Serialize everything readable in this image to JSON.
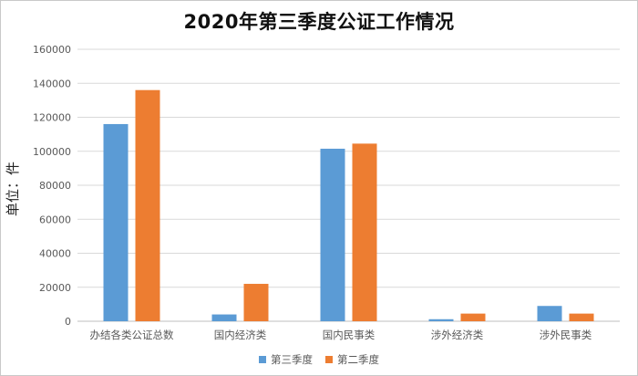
{
  "chart_data": {
    "type": "bar",
    "title": "2020年第三季度公证工作情况",
    "xlabel": "",
    "ylabel": "单位：件",
    "ylim": [
      0,
      160000
    ],
    "yticks": [
      0,
      20000,
      40000,
      60000,
      80000,
      100000,
      120000,
      140000,
      160000
    ],
    "grid": true,
    "legend_position": "bottom",
    "categories": [
      "办结各类公证总数",
      "国内经济类",
      "国内民事类",
      "涉外经济类",
      "涉外民事类"
    ],
    "series": [
      {
        "name": "第三季度",
        "color": "#5B9BD5",
        "values": [
          116000,
          4000,
          101500,
          1200,
          9000
        ]
      },
      {
        "name": "第二季度",
        "color": "#ED7D31",
        "values": [
          136000,
          22000,
          104500,
          4500,
          4500
        ]
      }
    ]
  }
}
